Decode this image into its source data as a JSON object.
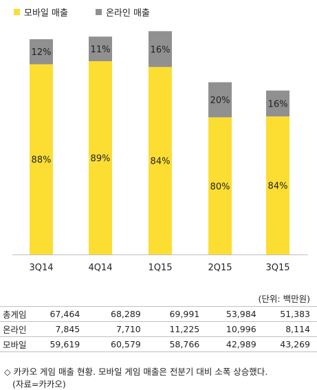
{
  "colors": {
    "mobile": "#fcde33",
    "online": "#909090",
    "axis": "#bfbfbf"
  },
  "legend": {
    "mobile": "모바일 매출",
    "online": "온라인 매출"
  },
  "chart_data": {
    "type": "bar",
    "stacked": true,
    "categories": [
      "3Q14",
      "4Q14",
      "1Q15",
      "2Q15",
      "3Q15"
    ],
    "series": [
      {
        "name": "모바일 매출",
        "labels": [
          "88%",
          "89%",
          "84%",
          "80%",
          "84%"
        ],
        "values": [
          59619,
          60579,
          58766,
          42989,
          43269
        ]
      },
      {
        "name": "온라인 매출",
        "labels": [
          "12%",
          "11%",
          "16%",
          "20%",
          "16%"
        ],
        "values": [
          7845,
          7710,
          11225,
          10996,
          8114
        ]
      }
    ],
    "totals": [
      67464,
      68289,
      69991,
      53984,
      51383
    ],
    "ylim": [
      0,
      72000
    ]
  },
  "unit_label": "(단위: 백만원)",
  "table": {
    "rows": [
      {
        "label": "총게임",
        "cells": [
          "67,464",
          "68,289",
          "69,991",
          "53,984",
          "51,383"
        ]
      },
      {
        "label": "온라인",
        "cells": [
          "7,845",
          "7,710",
          "11,225",
          "10,996",
          "8,114"
        ]
      },
      {
        "label": "모바일",
        "cells": [
          "59,619",
          "60,579",
          "58,766",
          "42,989",
          "43,269"
        ]
      }
    ]
  },
  "note": "◇ 카카오 게임 매출 현황. 모바일 게임 매출은 전분기 대비 소폭 상승했다.",
  "source": "(자료=카카오)"
}
